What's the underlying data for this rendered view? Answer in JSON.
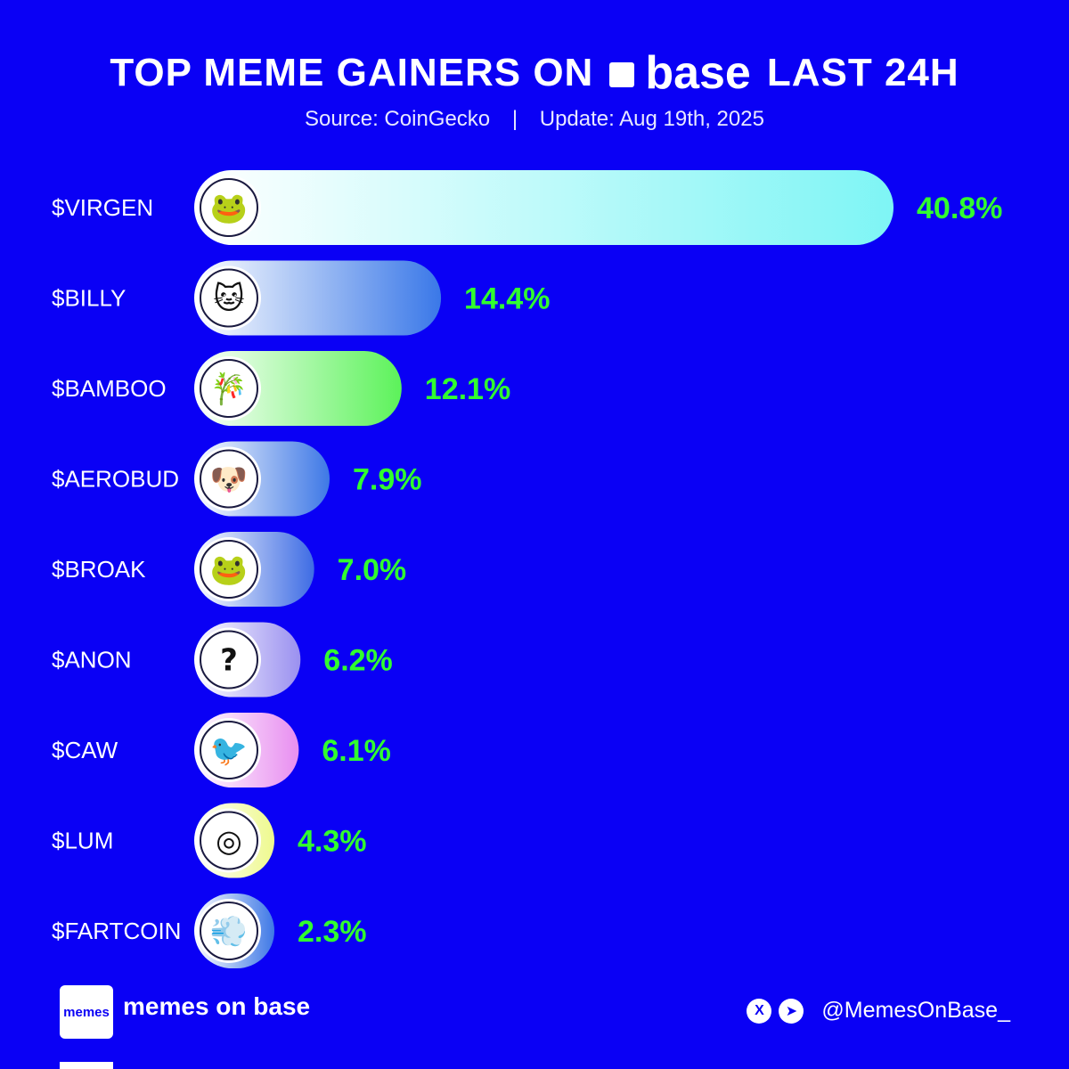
{
  "header": {
    "title_before": "TOP MEME GAINERS ON",
    "brand": "base",
    "title_after": "LAST 24H",
    "source": "Source: CoinGecko",
    "separator": "|",
    "update": "Update: Aug 19th, 2025"
  },
  "chart_data": {
    "type": "bar",
    "orientation": "horizontal",
    "categories": [
      "$VIRGEN",
      "$BILLY",
      "$BAMBOO",
      "$AEROBUD",
      "$BROAK",
      "$ANON",
      "$CAW",
      "$LUM",
      "$FARTCOIN"
    ],
    "values": [
      40.8,
      14.4,
      12.1,
      7.9,
      7.0,
      6.2,
      6.1,
      4.3,
      2.3
    ],
    "value_labels": [
      "40.8%",
      "14.4%",
      "12.1%",
      "7.9%",
      "7.0%",
      "6.2%",
      "6.1%",
      "4.3%",
      "2.3%"
    ],
    "icons": [
      "pepe-tuxedo-icon",
      "blue-cat-icon",
      "bamboo-icon",
      "dog-icon",
      "frog-icon",
      "question-mark-icon",
      "crow-icon",
      "spiral-icon",
      "fartcoin-icon"
    ],
    "icon_glyphs": [
      "🐸",
      "🐱",
      "🎋",
      "🐶",
      "🐸",
      "?",
      "🐦",
      "◎",
      "💨"
    ],
    "bar_gradients": [
      [
        "#ffffff",
        "#7ef5f5"
      ],
      [
        "#ffffff",
        "#3a78e8"
      ],
      [
        "#ffffff",
        "#5cf25a"
      ],
      [
        "#ffffff",
        "#3e78e6"
      ],
      [
        "#ffffff",
        "#3e6ce4"
      ],
      [
        "#ffffff",
        "#9a90f0"
      ],
      [
        "#ffffff",
        "#e88ef0"
      ],
      [
        "#ffffff",
        "#eef98e"
      ],
      [
        "#ffffff",
        "#3e78e6"
      ]
    ],
    "value_label_color": "#31ff2e",
    "background_color": "#0a00f5"
  },
  "footer": {
    "logo_text": "memes",
    "brand": "memes on base",
    "x_icon": "X",
    "telegram_icon": "➤",
    "handle": "@MemesOnBase_"
  }
}
